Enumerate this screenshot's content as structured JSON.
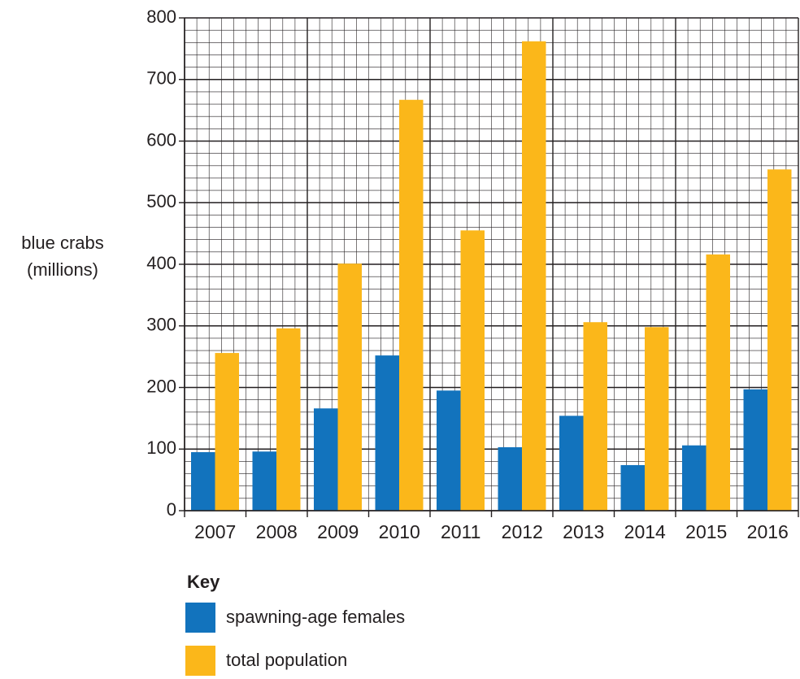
{
  "chart_data": {
    "type": "bar",
    "y_label": [
      "blue crabs",
      "(millions)"
    ],
    "categories": [
      "2007",
      "2008",
      "2009",
      "2010",
      "2011",
      "2012",
      "2013",
      "2014",
      "2015",
      "2016"
    ],
    "series": [
      {
        "name": "spawning-age females",
        "color": "#1273bd",
        "values": [
          95,
          96,
          166,
          252,
          195,
          103,
          154,
          74,
          106,
          197
        ]
      },
      {
        "name": "total population",
        "color": "#fbb71a",
        "values": [
          256,
          296,
          401,
          667,
          455,
          762,
          306,
          298,
          416,
          554
        ]
      }
    ],
    "ylim": [
      0,
      800
    ],
    "yticks": [
      0,
      100,
      200,
      300,
      400,
      500,
      600,
      700,
      800
    ],
    "grid": true,
    "legend_title": "Key"
  }
}
